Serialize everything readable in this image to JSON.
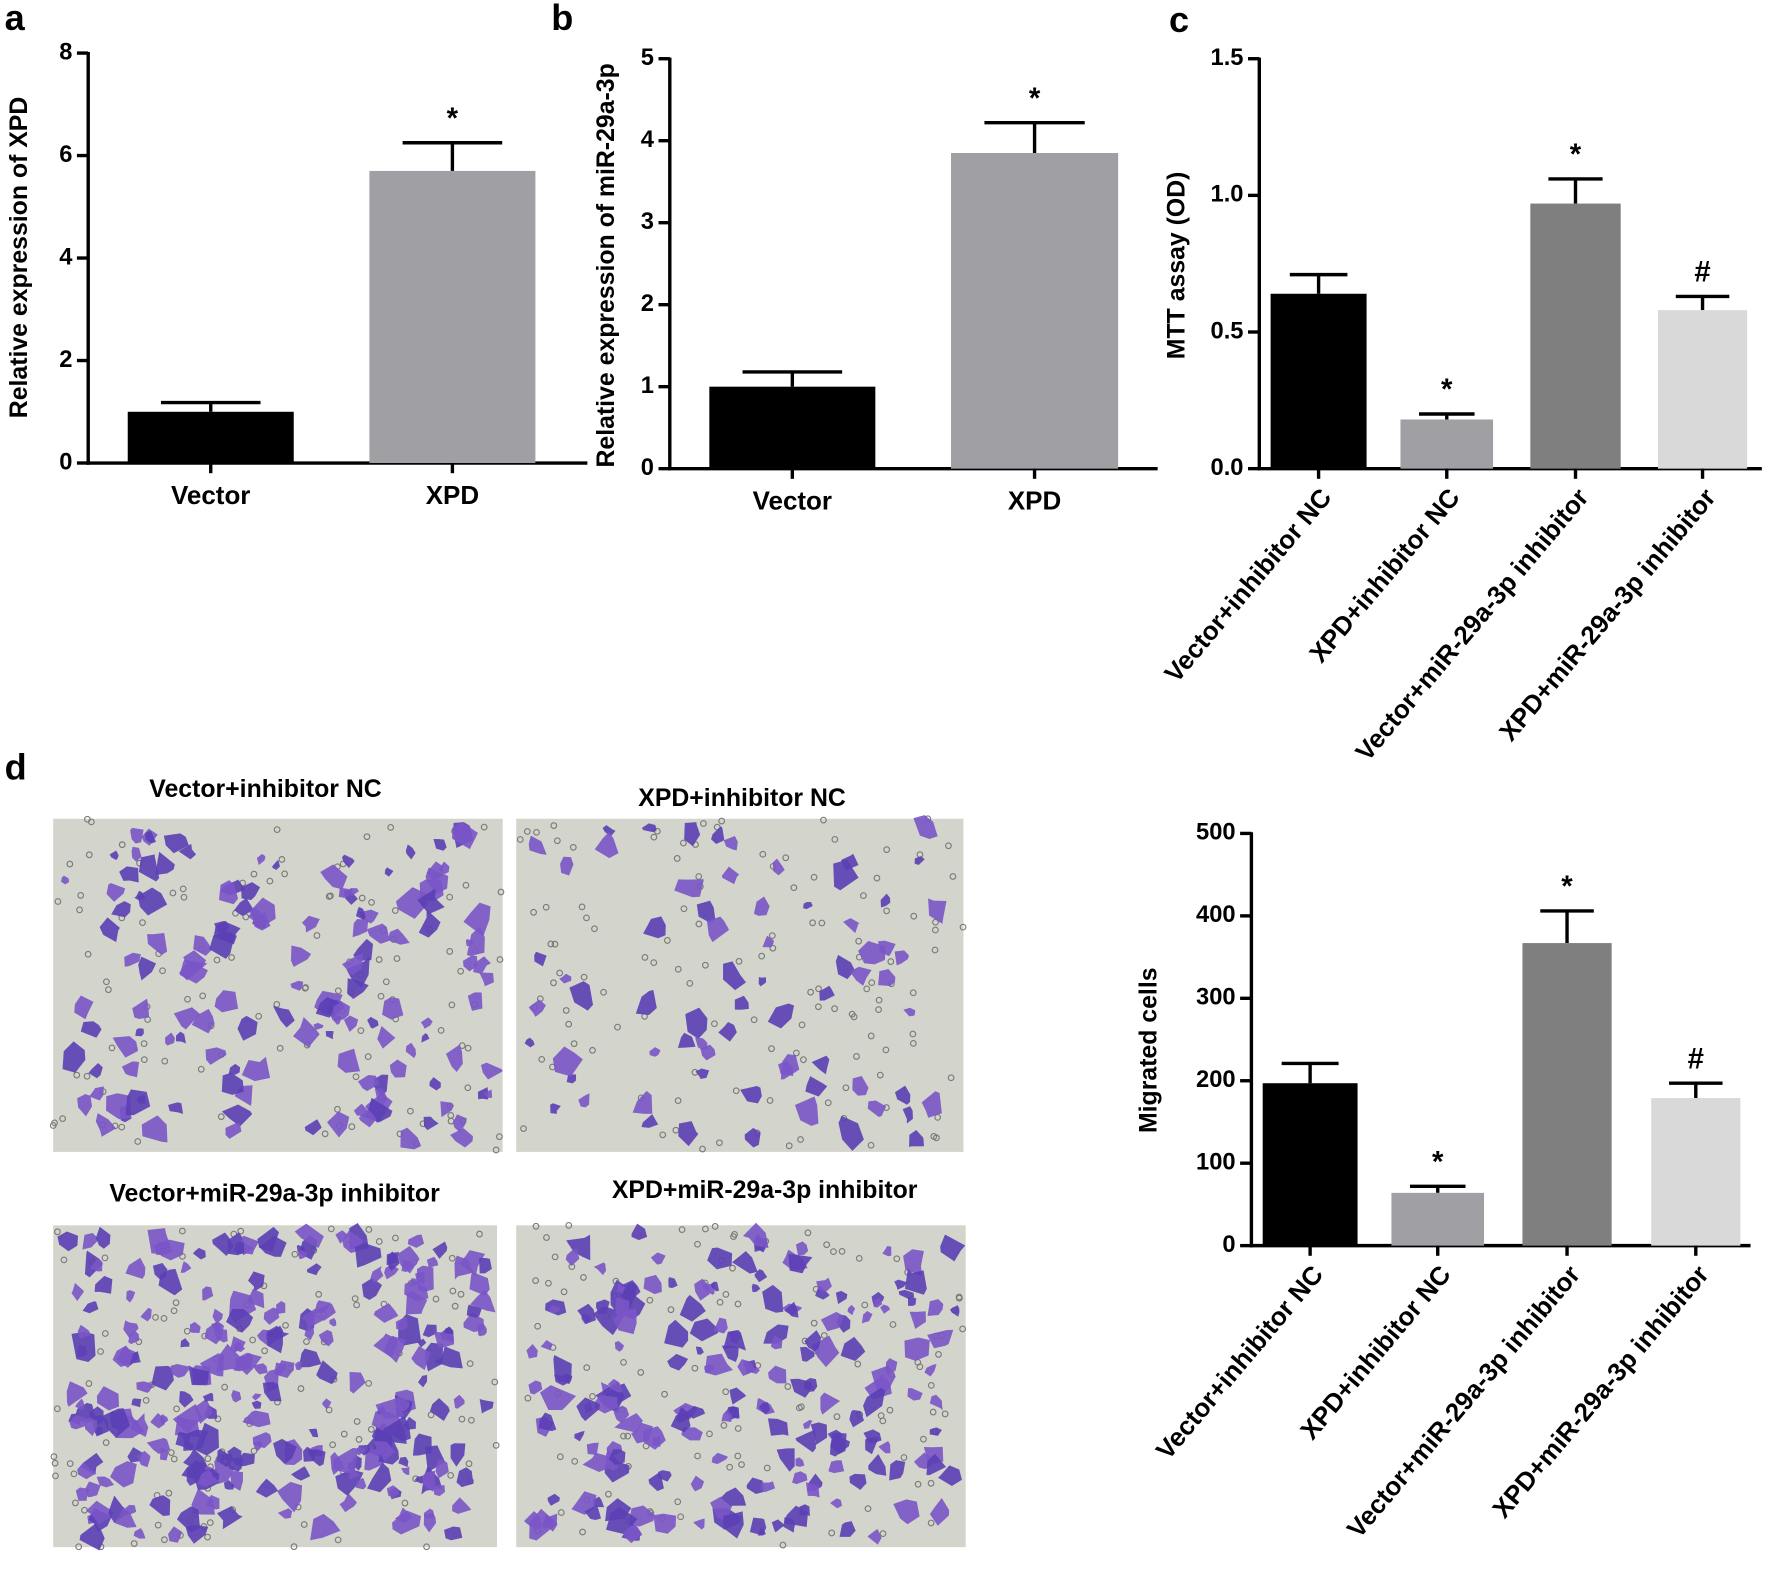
{
  "panels": [
    "a",
    "b",
    "c",
    "d"
  ],
  "micrograph_titles": [
    "Vector+inhibitor NC",
    "XPD+inhibitor NC",
    "Vector+miR-29a-3p inhibitor",
    "XPD+miR-29a-3p inhibitor"
  ],
  "chart_data": [
    {
      "type": "bar",
      "y_label": "Relative expression of XPD",
      "categories": [
        "Vector",
        "XPD"
      ],
      "values": [
        1.0,
        5.7
      ],
      "errors": [
        0.18,
        0.55
      ],
      "annotations": [
        null,
        "*"
      ],
      "colors": [
        "#000000",
        "#a0a0a4"
      ],
      "ylim": [
        0,
        8
      ],
      "yticks": [
        0,
        2,
        4,
        6,
        8
      ]
    },
    {
      "type": "bar",
      "y_label": "Relative expression of miR-29a-3p",
      "categories": [
        "Vector",
        "XPD"
      ],
      "values": [
        1.0,
        3.85
      ],
      "errors": [
        0.18,
        0.37
      ],
      "annotations": [
        null,
        "*"
      ],
      "colors": [
        "#000000",
        "#a0a0a4"
      ],
      "ylim": [
        0,
        5
      ],
      "yticks": [
        0,
        1,
        2,
        3,
        4,
        5
      ]
    },
    {
      "type": "bar",
      "y_label": "MTT assay (OD)",
      "categories": [
        "Vector+inhibitor NC",
        "XPD+inhibitor NC",
        "Vector+miR-29a-3p inhibitor",
        "XPD+miR-29a-3p inhibitor"
      ],
      "values": [
        0.64,
        0.18,
        0.97,
        0.58
      ],
      "errors": [
        0.07,
        0.02,
        0.09,
        0.05
      ],
      "annotations": [
        null,
        "*",
        "*",
        "#"
      ],
      "colors": [
        "#000000",
        "#a0a0a4",
        "#7f7f7f",
        "#d9d9d9"
      ],
      "ylim": [
        0,
        1.5
      ],
      "yticks": [
        {
          "value": 0,
          "label": "0.0"
        },
        0.5,
        {
          "value": 1,
          "label": "1.0"
        },
        1.5
      ]
    },
    {
      "type": "bar",
      "y_label": "Migrated cells",
      "categories": [
        "Vector+inhibitor NC",
        "XPD+inhibitor NC",
        "Vector+miR-29a-3p inhibitor",
        "XPD+miR-29a-3p inhibitor"
      ],
      "values": [
        197,
        64,
        367,
        179
      ],
      "errors": [
        24,
        8,
        39,
        18
      ],
      "annotations": [
        null,
        "*",
        "*",
        "#"
      ],
      "colors": [
        "#000000",
        "#a0a0a4",
        "#7f7f7f",
        "#d9d9d9"
      ],
      "ylim": [
        0,
        500
      ],
      "yticks": [
        0,
        100,
        200,
        300,
        400,
        500
      ]
    }
  ]
}
